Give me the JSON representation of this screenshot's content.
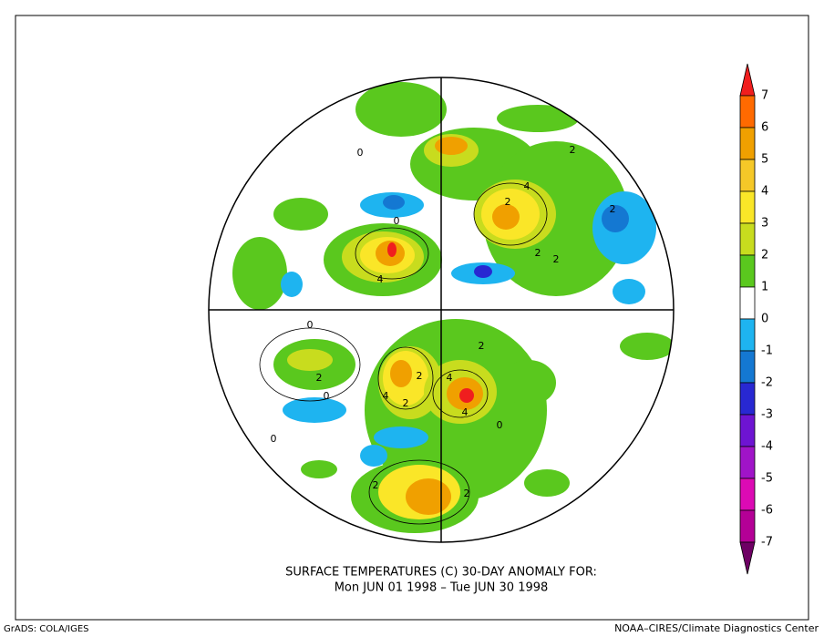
{
  "map": {
    "title_line1": "SURFACE TEMPERATURES (C)   30-DAY ANOMALY FOR:",
    "title_line2": "Mon JUN 01 1998 – Tue JUN 30 1998",
    "footer_left": "GrADS: COLA/IGES",
    "footer_right": "NOAA–CIRES/Climate Diagnostics Center",
    "contour_labels": [
      "2",
      "2",
      "4",
      "2",
      "0",
      "4",
      "0",
      "2",
      "2",
      "0",
      "0",
      "2",
      "4",
      "2",
      "4",
      "4",
      "2",
      "2",
      "0",
      "0",
      "2",
      "2"
    ],
    "colorbar": {
      "levels": [
        7,
        6,
        5,
        4,
        3,
        2,
        1,
        0,
        -1,
        -2,
        -3,
        -4,
        -5,
        -6,
        -7
      ],
      "colors": [
        "#f01e1e",
        "#ff6a00",
        "#f0a000",
        "#f5c828",
        "#fae628",
        "#c8dc1e",
        "#5ac81e",
        "#ffffff",
        "#1eb4f0",
        "#1478d2",
        "#2828d2",
        "#6e14d2",
        "#a014c8",
        "#dc0ab4",
        "#b40096",
        "#6e0064"
      ]
    }
  }
}
